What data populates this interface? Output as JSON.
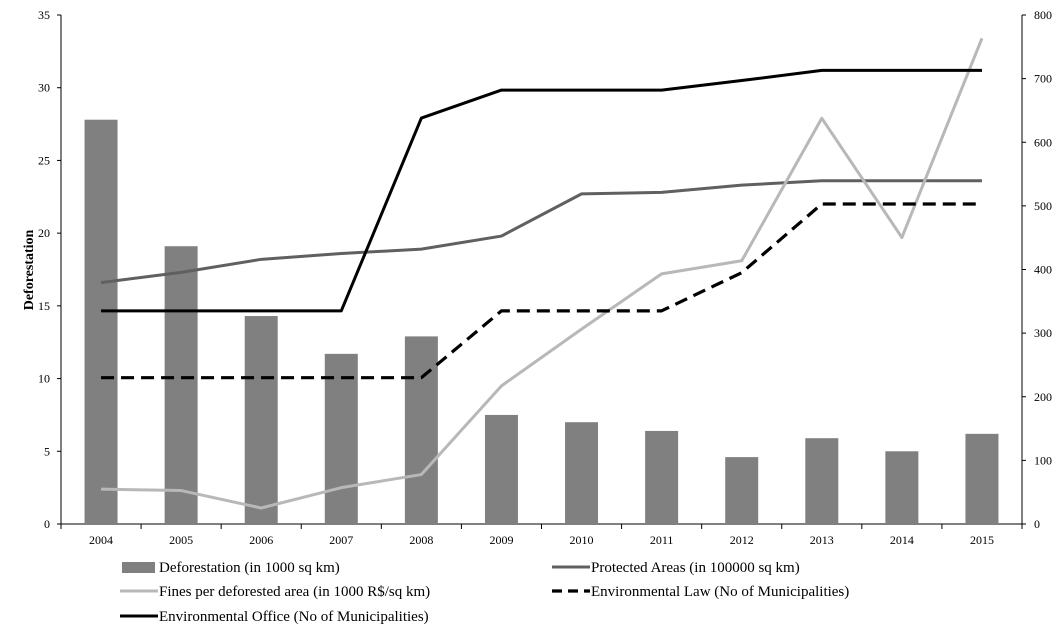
{
  "chart_data": {
    "type": "bar",
    "categories": [
      "2004",
      "2005",
      "2006",
      "2007",
      "2008",
      "2009",
      "2010",
      "2011",
      "2012",
      "2013",
      "2014",
      "2015"
    ],
    "ylabel": "Deforestation",
    "xlabel": "",
    "ylim": [
      0,
      35
    ],
    "y2lim": [
      0,
      800
    ],
    "yticks": [
      "0",
      "5",
      "10",
      "15",
      "20",
      "25",
      "30",
      "35"
    ],
    "y2ticks": [
      "0",
      "100",
      "200",
      "300",
      "400",
      "500",
      "600",
      "700",
      "800"
    ],
    "grid": false,
    "legend_position": "bottom",
    "series": [
      {
        "name": "Deforestation (in 1000 sq km)",
        "type": "bar",
        "axis": "left",
        "color": "#808080",
        "values": [
          27.8,
          19.1,
          14.3,
          11.7,
          12.9,
          7.5,
          7.0,
          6.4,
          4.6,
          5.9,
          5.0,
          6.2
        ]
      },
      {
        "name": "Protected Areas (in 100000 sq km)",
        "type": "line",
        "axis": "left",
        "color": "#606060",
        "dash": "solid",
        "values": [
          16.6,
          17.3,
          18.2,
          18.6,
          18.9,
          19.8,
          22.7,
          22.8,
          23.3,
          23.6,
          23.6,
          23.6
        ]
      },
      {
        "name": "Fines per deforested area (in 1000 R$/sq km)",
        "type": "line",
        "axis": "left",
        "color": "#b8b8b8",
        "dash": "solid",
        "values": [
          2.4,
          2.3,
          1.1,
          2.5,
          3.4,
          9.5,
          13.4,
          17.2,
          18.1,
          27.9,
          19.7,
          33.4
        ]
      },
      {
        "name": "Environmental Law (No of Municipalities)",
        "type": "line",
        "axis": "right",
        "color": "#000000",
        "dash": "dashed",
        "values": [
          230,
          230,
          230,
          230,
          230,
          335,
          335,
          335,
          395,
          503,
          503,
          503
        ]
      },
      {
        "name": "Environmental Office (No of Municipalities)",
        "type": "line",
        "axis": "right",
        "color": "#000000",
        "dash": "solid",
        "values": [
          335,
          335,
          335,
          335,
          638,
          682,
          682,
          682,
          697,
          713,
          713,
          713
        ]
      }
    ]
  }
}
